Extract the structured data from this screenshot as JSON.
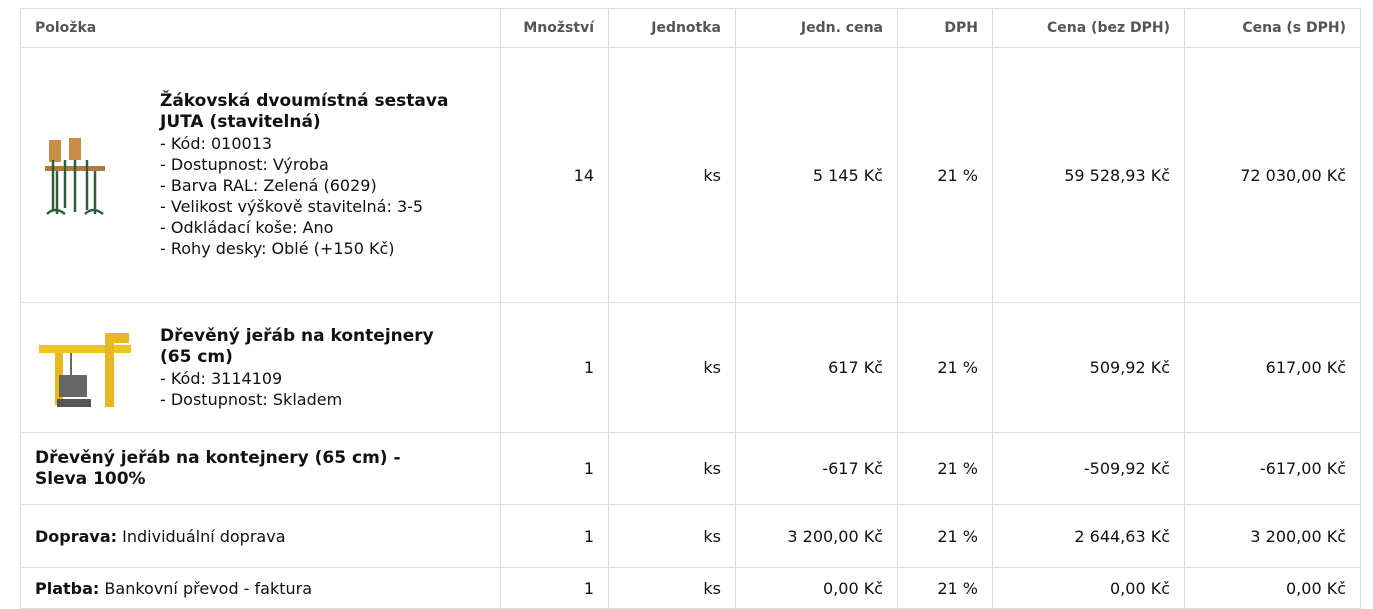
{
  "table": {
    "headers": [
      "Položka",
      "Množství",
      "Jednotka",
      "Jedn. cena",
      "DPH",
      "Cena (bez DPH)",
      "Cena (s DPH)"
    ],
    "rows": [
      {
        "title": "Žákovská dvoumístná sestava JUTA (stavitelná)",
        "details": [
          "- Kód: 010013",
          "- Dostupnost: Výroba",
          "- Barva RAL: Zelená (6029)",
          "- Velikost výškově stavitelná: 3-5",
          "- Odkládací koše: Ano",
          "- Rohy desky: Oblé (+150 Kč)"
        ],
        "quantity": "14",
        "unit": "ks",
        "unit_price": "5 145 Kč",
        "vat": "21 %",
        "price_excl_vat": "59 528,93 Kč",
        "price_incl_vat": "72 030,00 Kč"
      },
      {
        "title": "Dřevěný jeřáb na kontejnery (65 cm)",
        "details": [
          "- Kód: 3114109",
          "- Dostupnost: Skladem"
        ],
        "quantity": "1",
        "unit": "ks",
        "unit_price": "617 Kč",
        "vat": "21 %",
        "price_excl_vat": "509,92 Kč",
        "price_incl_vat": "617,00 Kč"
      },
      {
        "title": "Dřevěný jeřáb na kontejnery (65 cm) - Sleva 100%",
        "quantity": "1",
        "unit": "ks",
        "unit_price": "-617 Kč",
        "vat": "21 %",
        "price_excl_vat": "-509,92 Kč",
        "price_incl_vat": "-617,00 Kč"
      },
      {
        "label": "Doprava:",
        "text": "Individuální doprava",
        "quantity": "1",
        "unit": "ks",
        "unit_price": "3 200,00 Kč",
        "vat": "21 %",
        "price_excl_vat": "2 644,63 Kč",
        "price_incl_vat": "3 200,00 Kč"
      },
      {
        "label": "Platba:",
        "text": "Bankovní převod - faktura",
        "quantity": "1",
        "unit": "ks",
        "unit_price": "0,00 Kč",
        "vat": "21 %",
        "price_excl_vat": "0,00 Kč",
        "price_incl_vat": "0,00 Kč"
      }
    ]
  }
}
